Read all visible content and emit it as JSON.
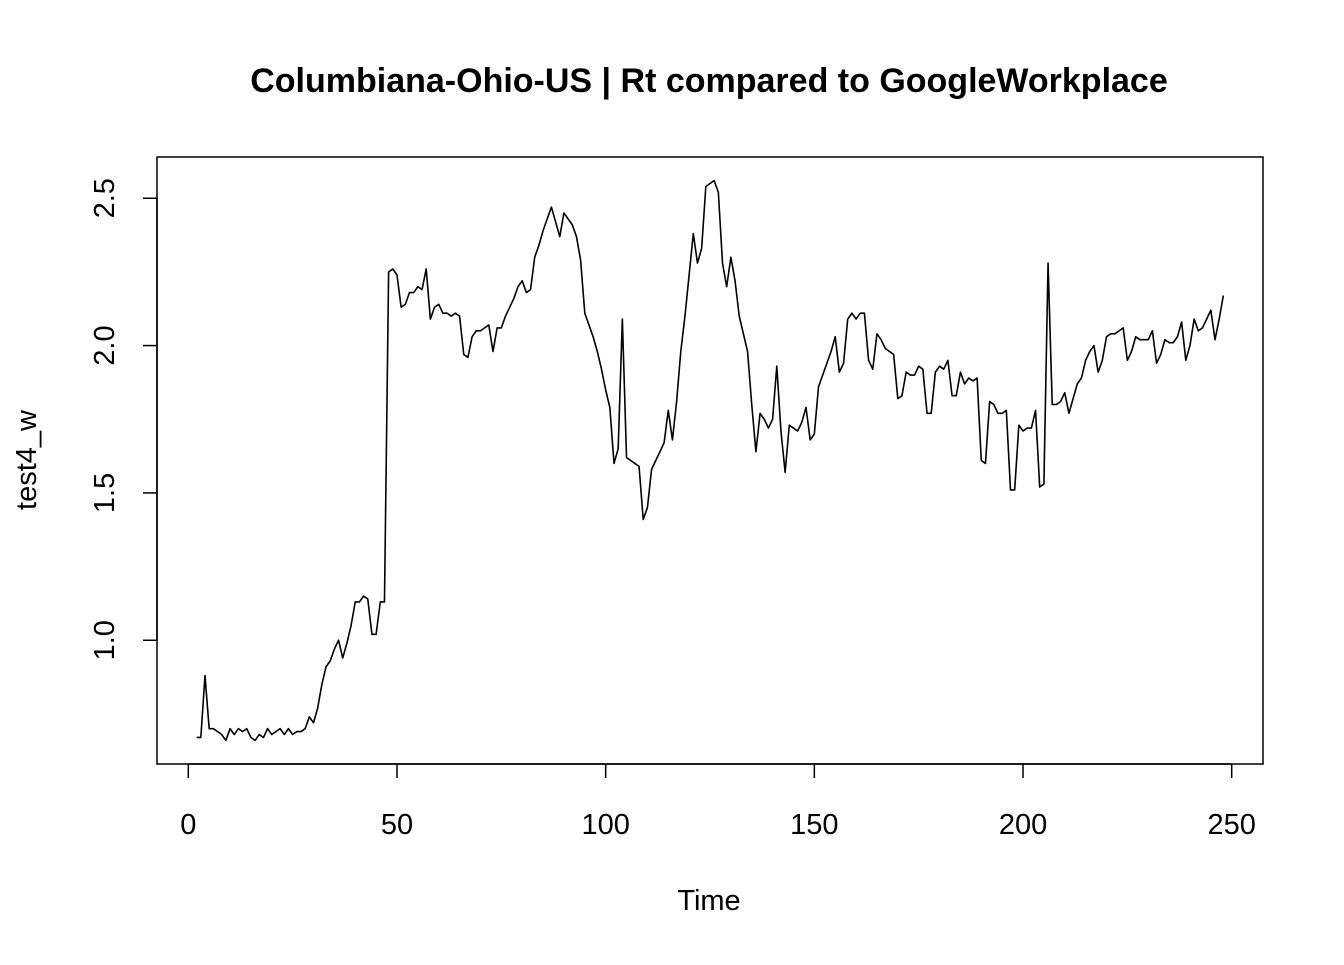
{
  "chart_data": {
    "type": "line",
    "title": "Columbiana-Ohio-US | Rt compared to GoogleWorkplace",
    "xlabel": "Time",
    "ylabel": "test4_w",
    "xlim": [
      -7.5,
      257.5
    ],
    "ylim": [
      0.58,
      2.64
    ],
    "x_ticks": [
      0,
      50,
      100,
      150,
      200,
      250
    ],
    "x_tick_labels": [
      "0",
      "50",
      "100",
      "150",
      "200",
      "250"
    ],
    "y_ticks": [
      1.0,
      1.5,
      2.0,
      2.5
    ],
    "y_tick_labels": [
      "1.0",
      "1.5",
      "2.0",
      "2.5"
    ],
    "grid": false,
    "legend": "none",
    "line_color": "#000000",
    "series": [
      {
        "x_start": 2,
        "x_step": 1,
        "values": [
          0.67,
          0.67,
          0.88,
          0.7,
          0.7,
          0.69,
          0.68,
          0.66,
          0.7,
          0.68,
          0.7,
          0.69,
          0.7,
          0.67,
          0.66,
          0.68,
          0.67,
          0.7,
          0.68,
          0.69,
          0.7,
          0.68,
          0.7,
          0.68,
          0.69,
          0.69,
          0.7,
          0.74,
          0.72,
          0.77,
          0.85,
          0.91,
          0.93,
          0.97,
          1.0,
          0.94,
          0.99,
          1.05,
          1.13,
          1.13,
          1.15,
          1.14,
          1.02,
          1.02,
          1.13,
          1.13,
          2.25,
          2.26,
          2.24,
          2.13,
          2.14,
          2.18,
          2.18,
          2.2,
          2.19,
          2.26,
          2.09,
          2.13,
          2.14,
          2.11,
          2.11,
          2.1,
          2.11,
          2.1,
          1.97,
          1.96,
          2.03,
          2.05,
          2.05,
          2.06,
          2.07,
          1.98,
          2.06,
          2.06,
          2.1,
          2.13,
          2.16,
          2.2,
          2.22,
          2.18,
          2.19,
          2.3,
          2.34,
          2.39,
          2.43,
          2.47,
          2.42,
          2.37,
          2.45,
          2.43,
          2.41,
          2.37,
          2.29,
          2.11,
          2.07,
          2.03,
          1.98,
          1.92,
          1.85,
          1.79,
          1.6,
          1.65,
          2.09,
          1.62,
          1.61,
          1.6,
          1.59,
          1.41,
          1.45,
          1.58,
          1.61,
          1.64,
          1.67,
          1.78,
          1.68,
          1.81,
          1.98,
          2.1,
          2.24,
          2.38,
          2.28,
          2.33,
          2.54,
          2.55,
          2.56,
          2.52,
          2.28,
          2.2,
          2.3,
          2.22,
          2.1,
          2.04,
          1.98,
          1.8,
          1.64,
          1.77,
          1.75,
          1.72,
          1.75,
          1.93,
          1.71,
          1.57,
          1.73,
          1.72,
          1.71,
          1.74,
          1.79,
          1.68,
          1.7,
          1.86,
          1.9,
          1.94,
          1.98,
          2.03,
          1.91,
          1.94,
          2.09,
          2.11,
          2.09,
          2.11,
          2.11,
          1.95,
          1.92,
          2.04,
          2.02,
          1.99,
          1.98,
          1.97,
          1.82,
          1.83,
          1.91,
          1.9,
          1.9,
          1.93,
          1.92,
          1.77,
          1.77,
          1.91,
          1.93,
          1.92,
          1.95,
          1.83,
          1.83,
          1.91,
          1.87,
          1.89,
          1.88,
          1.89,
          1.61,
          1.6,
          1.81,
          1.8,
          1.77,
          1.77,
          1.78,
          1.51,
          1.51,
          1.73,
          1.71,
          1.72,
          1.72,
          1.78,
          1.52,
          1.53,
          2.28,
          1.8,
          1.8,
          1.81,
          1.84,
          1.77,
          1.82,
          1.87,
          1.89,
          1.95,
          1.98,
          2.0,
          1.91,
          1.95,
          2.03,
          2.04,
          2.04,
          2.05,
          2.06,
          1.95,
          1.98,
          2.03,
          2.02,
          2.02,
          2.02,
          2.05,
          1.94,
          1.97,
          2.02,
          2.01,
          2.01,
          2.03,
          2.08,
          1.95,
          2.0,
          2.09,
          2.05,
          2.06,
          2.09,
          2.12,
          2.02,
          2.09,
          2.17
        ]
      }
    ]
  }
}
